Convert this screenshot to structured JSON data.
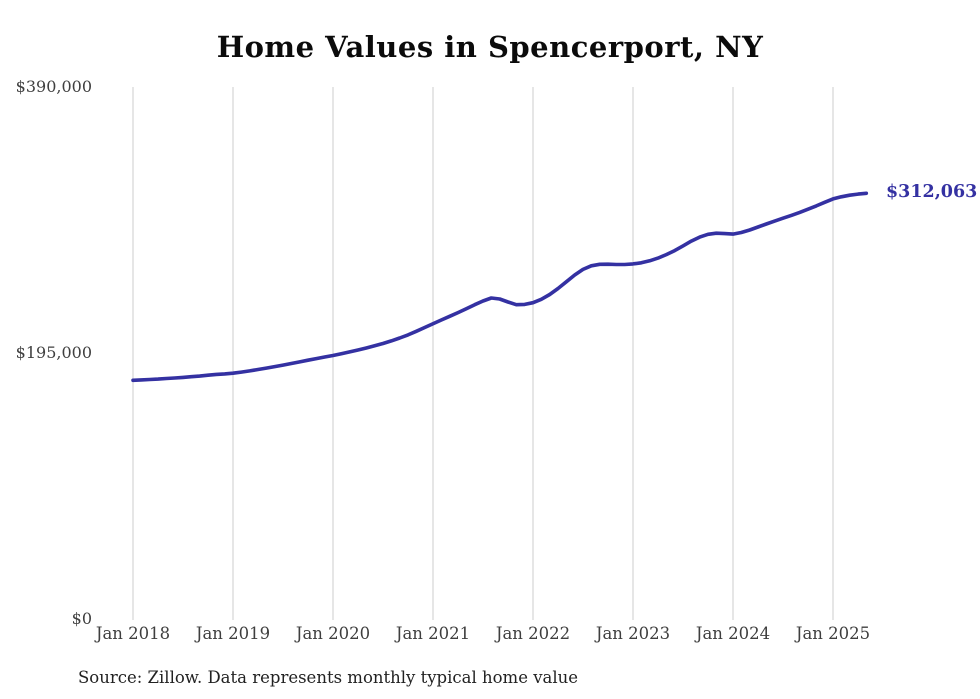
{
  "colors": {
    "line": "#3431a2",
    "grid": "#cccccc",
    "axis_text": "#3f3f3f",
    "title_text": "#0b0b0b",
    "source_text": "#222222",
    "background": "#ffffff"
  },
  "chart_data": {
    "type": "line",
    "title": "Home Values in Spencerport, NY",
    "source": "Source: Zillow. Data represents monthly typical home value",
    "x_tick_labels": [
      "Jan 2018",
      "Jan 2019",
      "Jan 2020",
      "Jan 2021",
      "Jan 2022",
      "Jan 2023",
      "Jan 2024",
      "Jan 2025"
    ],
    "y_ticks": [
      {
        "label": "$0",
        "value": 0
      },
      {
        "label": "$195,000",
        "value": 195000
      },
      {
        "label": "$390,000",
        "value": 390000
      }
    ],
    "ylim": [
      0,
      390000
    ],
    "grid": "vertical-only",
    "legend": "none",
    "frequency": "monthly",
    "x_range_start": "Jan 2018",
    "x_range_end": "May 2025",
    "final_value": 312063,
    "final_value_label": "$312,063",
    "series": [
      {
        "name": "Typical home value",
        "values": [
          175000,
          175300,
          175600,
          175900,
          176300,
          176700,
          177100,
          177600,
          178100,
          178700,
          179300,
          179700,
          180200,
          181000,
          181900,
          182900,
          183900,
          185000,
          186100,
          187300,
          188500,
          189700,
          190900,
          192100,
          193200,
          194500,
          195800,
          197200,
          198700,
          200300,
          202000,
          203900,
          206000,
          208300,
          210900,
          213700,
          216500,
          219200,
          221900,
          224600,
          227500,
          230400,
          233100,
          235300,
          234600,
          232400,
          230400,
          230600,
          231900,
          234400,
          237900,
          242300,
          247200,
          252200,
          256300,
          258900,
          260000,
          260100,
          259900,
          259900,
          260300,
          261100,
          262600,
          264600,
          267100,
          270100,
          273500,
          277000,
          280000,
          282000,
          282800,
          282500,
          282200,
          283300,
          285200,
          287400,
          289600,
          291700,
          293800,
          295900,
          298100,
          300400,
          302800,
          305500,
          308000,
          309500,
          310700,
          311500,
          312063
        ]
      }
    ]
  }
}
